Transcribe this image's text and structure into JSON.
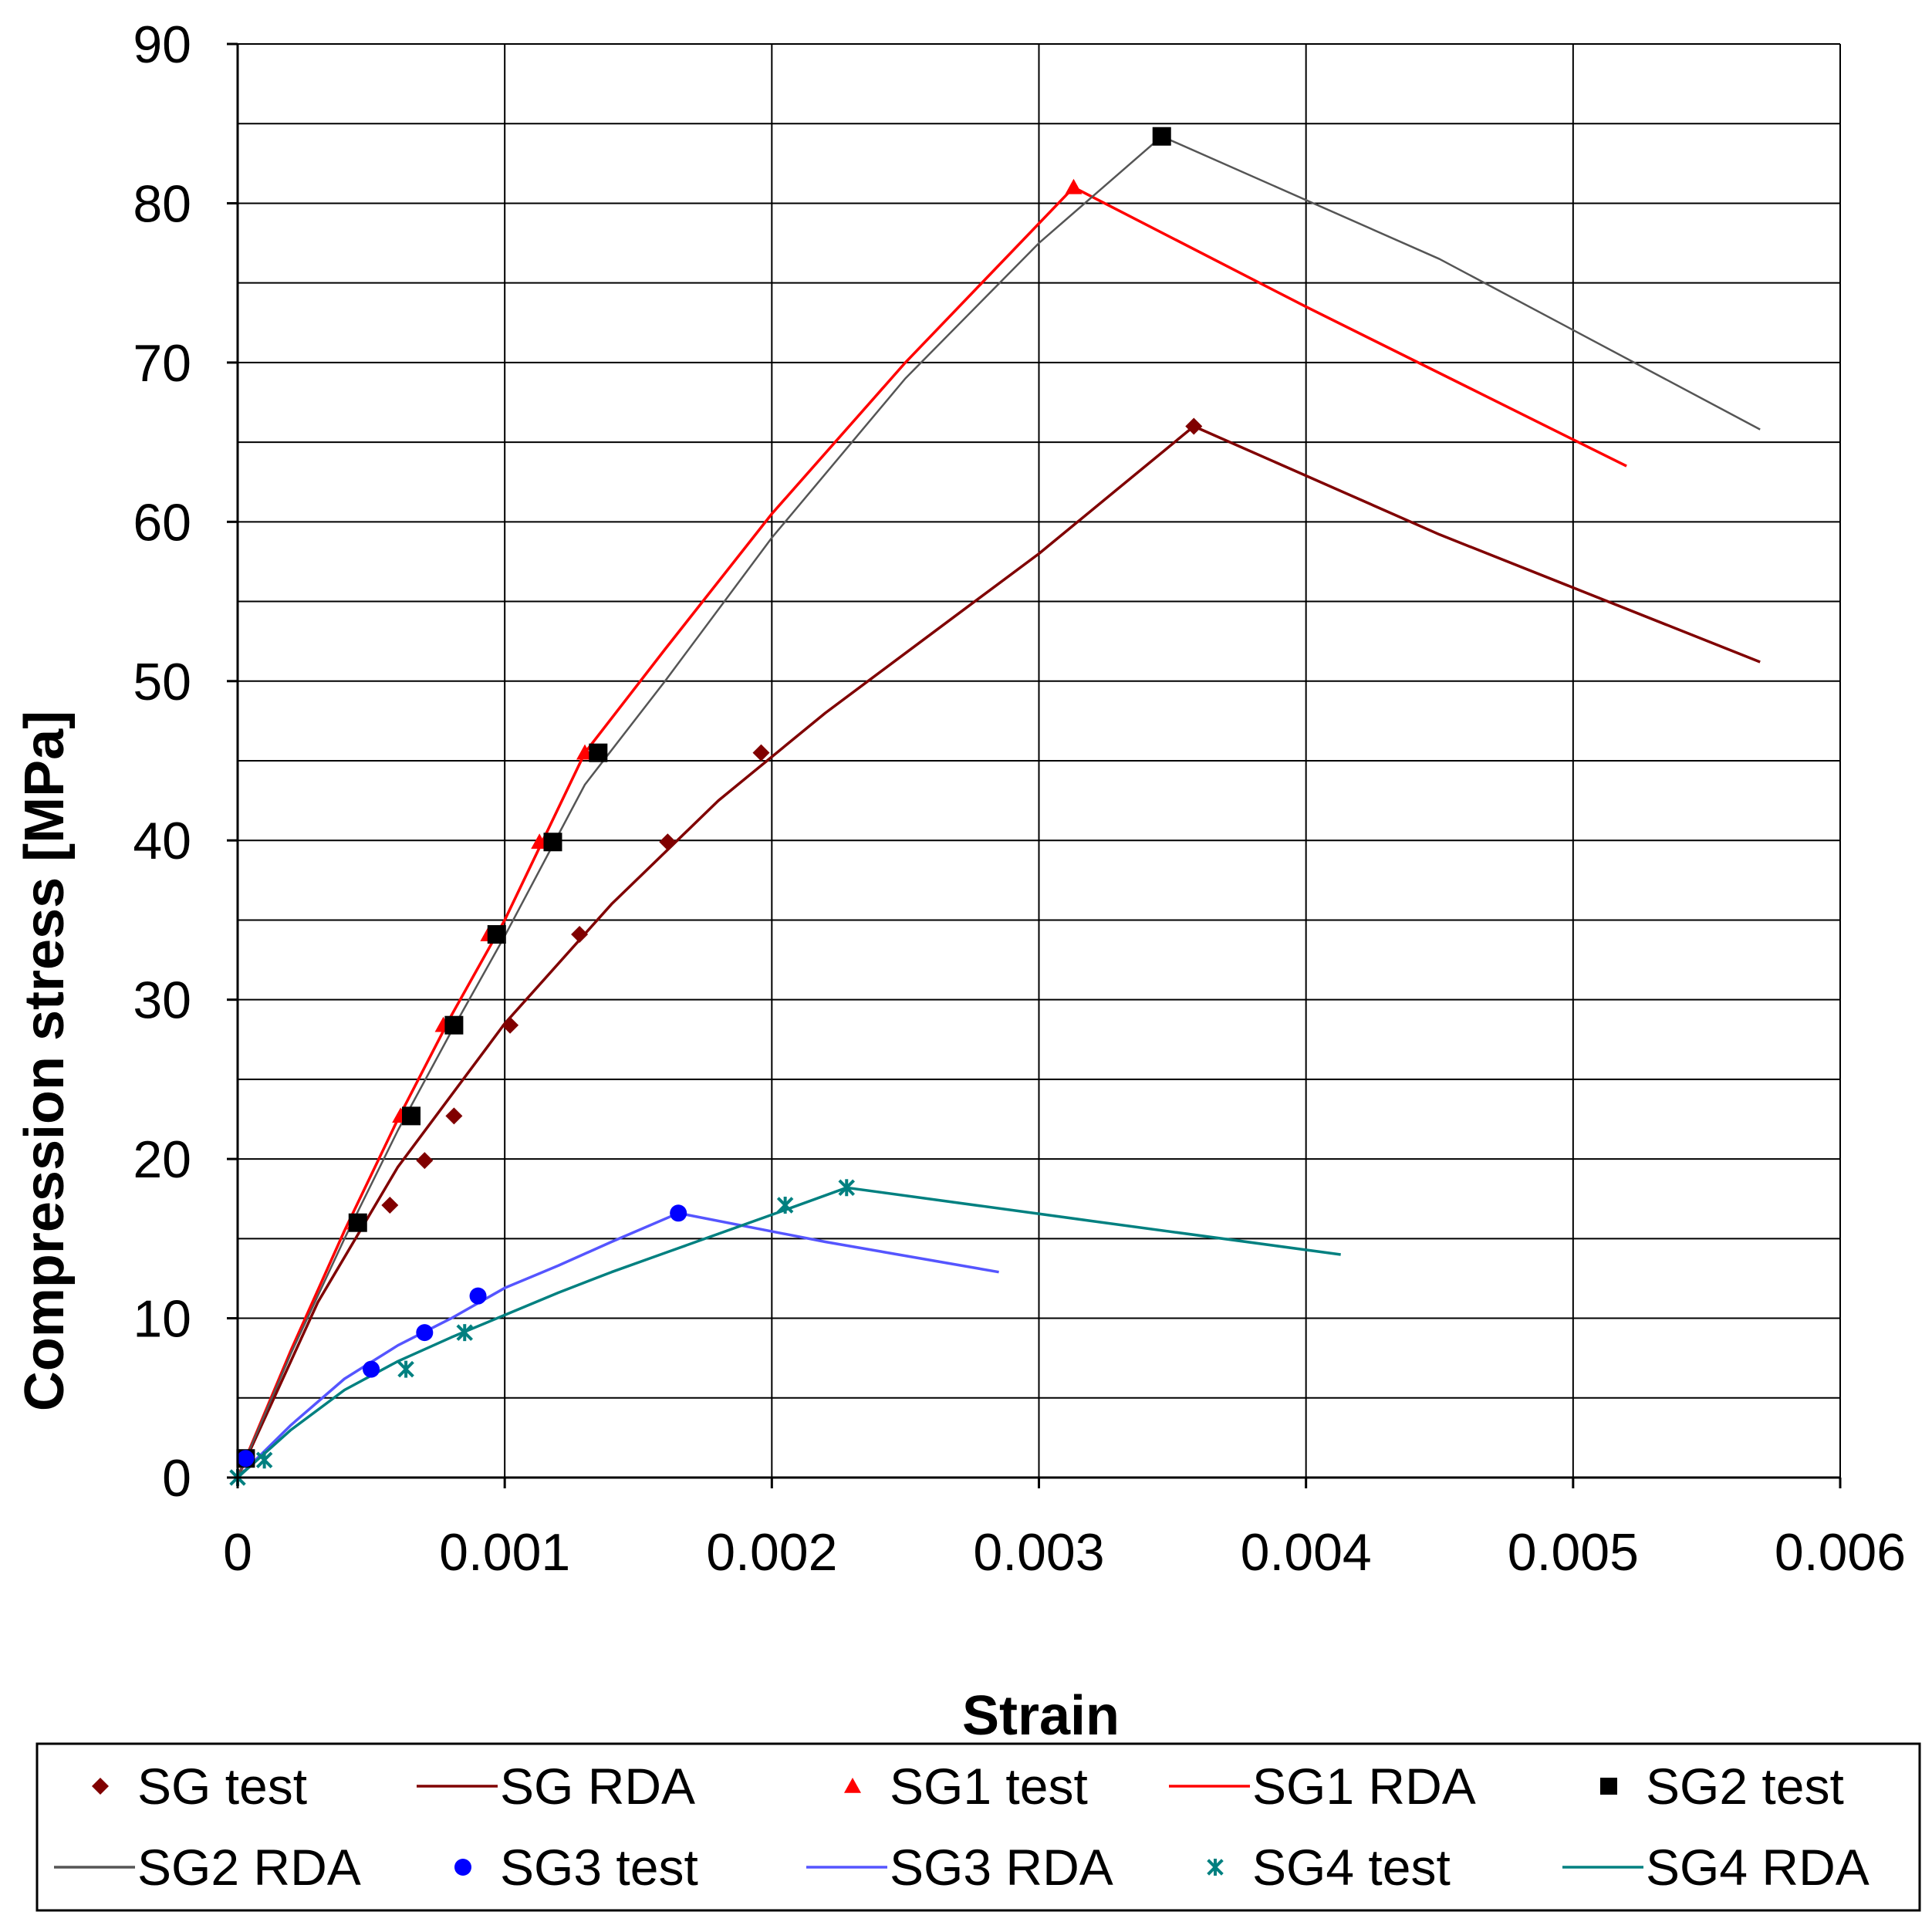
{
  "chart_data": {
    "type": "scatter",
    "title": "",
    "xlabel": "Strain",
    "ylabel": "Compression stress [MPa]",
    "xlim": [
      0,
      0.006
    ],
    "ylim": [
      0,
      90
    ],
    "x_ticks": [
      0,
      0.001,
      0.002,
      0.003,
      0.004,
      0.005,
      0.006
    ],
    "x_tick_labels": [
      "0",
      "0.001",
      "0.002",
      "0.003",
      "0.004",
      "0.005",
      "0.006"
    ],
    "y_ticks": [
      0,
      10,
      20,
      30,
      40,
      50,
      60,
      70,
      80,
      90
    ],
    "y_tick_labels": [
      "0",
      "10",
      "20",
      "30",
      "40",
      "50",
      "60",
      "70",
      "80",
      "90"
    ],
    "grid": true,
    "legend_position": "bottom",
    "series": [
      {
        "name": "SG test",
        "kind": "marker",
        "marker": "diamond",
        "color": "#800000",
        "x": [
          3e-05,
          0.00057,
          0.0007,
          0.00081,
          0.00102,
          0.00128,
          0.00161,
          0.00196,
          0.00358
        ],
        "y": [
          1.2,
          17.1,
          19.9,
          22.7,
          28.4,
          34.1,
          39.9,
          45.5,
          66.0
        ]
      },
      {
        "name": "SG RDA",
        "kind": "line",
        "color": "#800000",
        "x": [
          0,
          0.0003,
          0.0006,
          0.001,
          0.0014,
          0.0018,
          0.0022,
          0.0026,
          0.003,
          0.00358,
          0.0045,
          0.0057
        ],
        "y": [
          0,
          11.0,
          19.5,
          28.5,
          36.0,
          42.5,
          48.0,
          53.0,
          58.0,
          66.0,
          59.2,
          51.2
        ]
      },
      {
        "name": "SG1 test",
        "kind": "marker",
        "marker": "triangle",
        "color": "#ff0000",
        "x": [
          3e-05,
          0.00044,
          0.00061,
          0.00077,
          0.00094,
          0.00113,
          0.0013,
          0.00313
        ],
        "y": [
          1.2,
          16.0,
          22.7,
          28.4,
          34.1,
          39.9,
          45.5,
          81.0
        ]
      },
      {
        "name": "SG1 RDA",
        "kind": "line",
        "color": "#ff0000",
        "x": [
          0,
          0.0002,
          0.0004,
          0.0006,
          0.0008,
          0.001,
          0.0013,
          0.0016,
          0.002,
          0.0025,
          0.00313,
          0.004,
          0.0052
        ],
        "y": [
          0,
          8.0,
          15.5,
          22.5,
          29.0,
          35.0,
          45.5,
          52.0,
          60.5,
          70.0,
          81.0,
          73.5,
          63.5
        ]
      },
      {
        "name": "SG2 test",
        "kind": "marker",
        "marker": "square",
        "color": "#000000",
        "x": [
          3e-05,
          0.00045,
          0.00065,
          0.00081,
          0.00097,
          0.00118,
          0.00135,
          0.00346
        ],
        "y": [
          1.2,
          16.0,
          22.7,
          28.4,
          34.1,
          39.9,
          45.5,
          84.2
        ]
      },
      {
        "name": "SG2 RDA",
        "kind": "line",
        "color": "#555555",
        "x": [
          0,
          0.0002,
          0.0004,
          0.0006,
          0.0008,
          0.001,
          0.0013,
          0.0016,
          0.002,
          0.0025,
          0.003,
          0.00346,
          0.0045,
          0.0057
        ],
        "y": [
          0,
          7.8,
          15.0,
          21.8,
          28.0,
          34.0,
          43.5,
          50.0,
          59.0,
          69.0,
          77.5,
          84.2,
          76.5,
          65.8
        ]
      },
      {
        "name": "SG3 test",
        "kind": "marker",
        "marker": "circle",
        "color": "#0000ff",
        "x": [
          3e-05,
          0.0005,
          0.0007,
          0.0009,
          0.00165
        ],
        "y": [
          1.2,
          6.8,
          9.1,
          11.4,
          16.6
        ]
      },
      {
        "name": "SG3 RDA",
        "kind": "line",
        "color": "#5555ff",
        "x": [
          0,
          0.0002,
          0.0004,
          0.0006,
          0.0008,
          0.001,
          0.0012,
          0.0014,
          0.00165,
          0.0022,
          0.00285
        ],
        "y": [
          0,
          3.3,
          6.2,
          8.3,
          10.0,
          11.9,
          13.3,
          14.8,
          16.6,
          14.8,
          12.9
        ]
      },
      {
        "name": "SG4 test",
        "kind": "marker",
        "marker": "asterisk",
        "color": "#008080",
        "x": [
          0,
          0.0001,
          0.00063,
          0.00085,
          0.00205,
          0.00228
        ],
        "y": [
          0,
          1.1,
          6.8,
          9.1,
          17.1,
          18.2
        ]
      },
      {
        "name": "SG4 RDA",
        "kind": "line",
        "color": "#008080",
        "x": [
          0,
          0.0002,
          0.0004,
          0.0006,
          0.0008,
          0.001,
          0.0012,
          0.0014,
          0.0016,
          0.0018,
          0.002,
          0.00228,
          0.0032,
          0.00413
        ],
        "y": [
          0,
          3.0,
          5.5,
          7.3,
          8.8,
          10.2,
          11.6,
          12.9,
          14.1,
          15.3,
          16.5,
          18.2,
          16.1,
          14.0
        ]
      }
    ]
  }
}
